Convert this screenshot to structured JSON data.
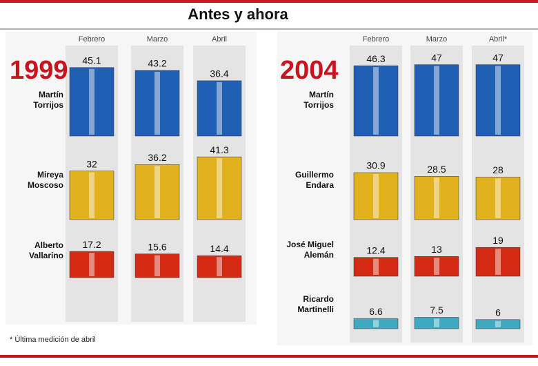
{
  "header": {
    "title": "Antes y ahora"
  },
  "chart_data": [
    {
      "type": "bar",
      "title": "1999",
      "categories": [
        "Febrero",
        "Marzo",
        "Abril"
      ],
      "series": [
        {
          "name": "Martín Torrijos",
          "color": "#1f5fb4",
          "values": [
            45.1,
            43.2,
            36.4
          ]
        },
        {
          "name": "Mireya Moscoso",
          "color": "#e2b21e",
          "values": [
            32,
            36.2,
            41.3
          ]
        },
        {
          "name": "Alberto Vallarino",
          "color": "#d42a14",
          "values": [
            17.2,
            15.6,
            14.4
          ]
        }
      ]
    },
    {
      "type": "bar",
      "title": "2004",
      "categories": [
        "Febrero",
        "Marzo",
        "Abril*"
      ],
      "series": [
        {
          "name": "Martín Torrijos",
          "color": "#1f5fb4",
          "values": [
            46.3,
            47,
            47
          ]
        },
        {
          "name": "Guillermo Endara",
          "color": "#e2b21e",
          "values": [
            30.9,
            28.5,
            28
          ]
        },
        {
          "name": "José Miguel Alemán",
          "color": "#d42a14",
          "values": [
            12.4,
            13,
            19
          ]
        },
        {
          "name": "Ricardo Martinelli",
          "color": "#3fa9c2",
          "values": [
            6.6,
            7.5,
            6
          ]
        }
      ]
    }
  ],
  "footnote": "* Última medición de abril"
}
